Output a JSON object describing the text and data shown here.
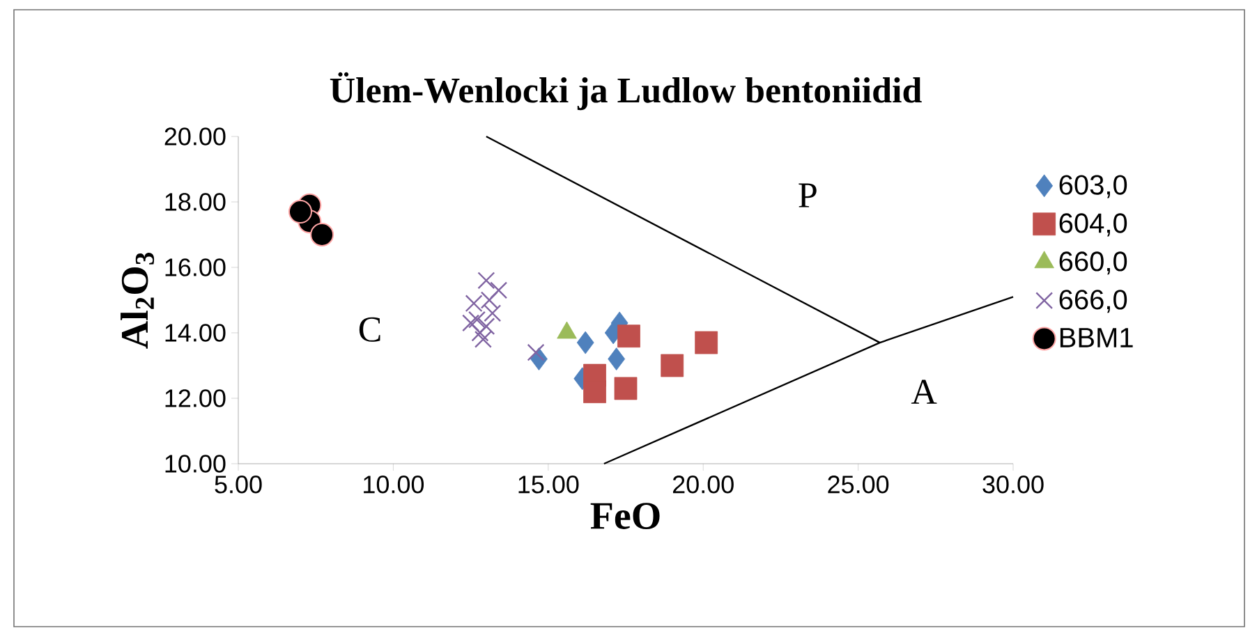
{
  "chart_data": {
    "type": "scatter",
    "title": "Ülem-Wenlocki ja Ludlow bentoniidid",
    "xlabel": "FeO",
    "ylabel": "Al$_{2}$O$_{3}$",
    "xlim": [
      5,
      30
    ],
    "xticks": [
      {
        "value": 5,
        "label": "5.00"
      },
      {
        "value": 10,
        "label": "10.00"
      },
      {
        "value": 15,
        "label": "15.00"
      },
      {
        "value": 20,
        "label": "20.00"
      },
      {
        "value": 25,
        "label": "25.00"
      },
      {
        "value": 30,
        "label": "30.00"
      }
    ],
    "ylim": [
      10,
      20
    ],
    "yticks": [
      {
        "value": 10,
        "label": "10.00"
      },
      {
        "value": 12,
        "label": "12.00"
      },
      {
        "value": 14,
        "label": "14.00"
      },
      {
        "value": 16,
        "label": "16.00"
      },
      {
        "value": 18,
        "label": "18.00"
      },
      {
        "value": 20,
        "label": "20.00"
      }
    ],
    "grid": false,
    "legend": "right",
    "series": [
      {
        "name": "603,0",
        "color": "#4f81bd",
        "marker": "diamond",
        "x": [
          14.7,
          16.2,
          17.3,
          17.1,
          17.2,
          16.1
        ],
        "values": [
          13.2,
          13.7,
          14.3,
          14.0,
          13.2,
          12.6
        ]
      },
      {
        "name": "604,0",
        "color": "#c0504d",
        "marker": "square",
        "x": [
          17.6,
          16.5,
          16.5,
          17.5,
          19.0,
          20.1
        ],
        "values": [
          13.9,
          12.7,
          12.2,
          12.3,
          13.0,
          13.7
        ]
      },
      {
        "name": "660,0",
        "color": "#9bbb59",
        "marker": "triangle",
        "x": [
          15.6
        ],
        "values": [
          14.0
        ]
      },
      {
        "name": "666,0",
        "color": "#8064a2",
        "marker": "cross",
        "x": [
          12.6,
          12.7,
          12.8,
          12.9,
          13.0,
          13.1,
          13.2,
          13.4,
          12.5,
          13.0,
          14.6
        ],
        "values": [
          14.9,
          14.4,
          14.0,
          13.8,
          15.6,
          15.0,
          14.6,
          15.3,
          14.3,
          14.2,
          13.4
        ]
      },
      {
        "name": "BBM1",
        "color": "#000000",
        "marker": "circle",
        "x": [
          7.3,
          7.3,
          7.7,
          7.0
        ],
        "values": [
          17.9,
          17.4,
          17.0,
          17.7
        ]
      },
      {
        "type": "line",
        "color": "#000000",
        "marker": "none",
        "x": [
          13.0,
          25.7
        ],
        "values": [
          20.0,
          13.7
        ]
      },
      {
        "type": "line",
        "color": "#000000",
        "marker": "none",
        "x": [
          16.8,
          25.7,
          30.0
        ],
        "values": [
          10.0,
          13.7,
          15.1
        ]
      }
    ],
    "annotations": [
      "P",
      "C",
      "A"
    ]
  }
}
